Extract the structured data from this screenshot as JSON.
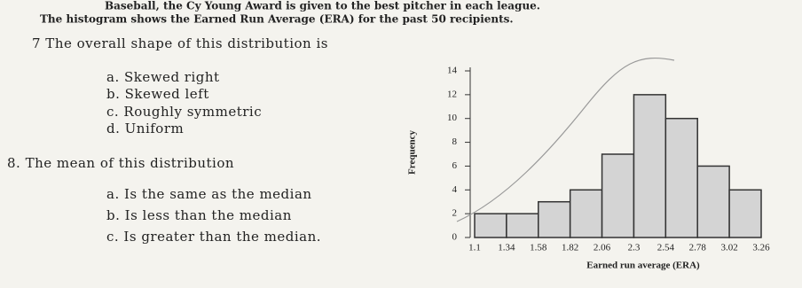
{
  "header": {
    "line1": "Baseball, the Cy Young Award is given to the best pitcher in each league.",
    "line2": "The histogram shows the Earned Run Average (ERA) for the past 50 recipients."
  },
  "questions": [
    {
      "prompt": "7 The overall shape of this distribution is",
      "options": [
        "a.  Skewed right",
        "b.  Skewed left",
        "c.  Roughly symmetric",
        "d.  Uniform"
      ]
    },
    {
      "prompt": "8. The mean of this distribution",
      "options": [
        "a.  Is the same as the median",
        "b.  Is less than the median",
        "c.  Is greater than the median."
      ]
    }
  ],
  "chart_data": {
    "type": "histogram",
    "bins": [
      1.1,
      1.34,
      1.58,
      1.82,
      2.06,
      2.3,
      2.54,
      2.78,
      3.02,
      3.26
    ],
    "values": [
      2,
      2,
      3,
      4,
      7,
      12,
      10,
      6,
      4
    ],
    "color": "#d4d4d4",
    "xlabel": "Earned run average (ERA)",
    "ylabel": "Frequency",
    "xlim": [
      1.1,
      3.26
    ],
    "ylim": [
      0,
      14
    ],
    "yticks": [
      0,
      2,
      4,
      6,
      8,
      10,
      12,
      14
    ]
  }
}
